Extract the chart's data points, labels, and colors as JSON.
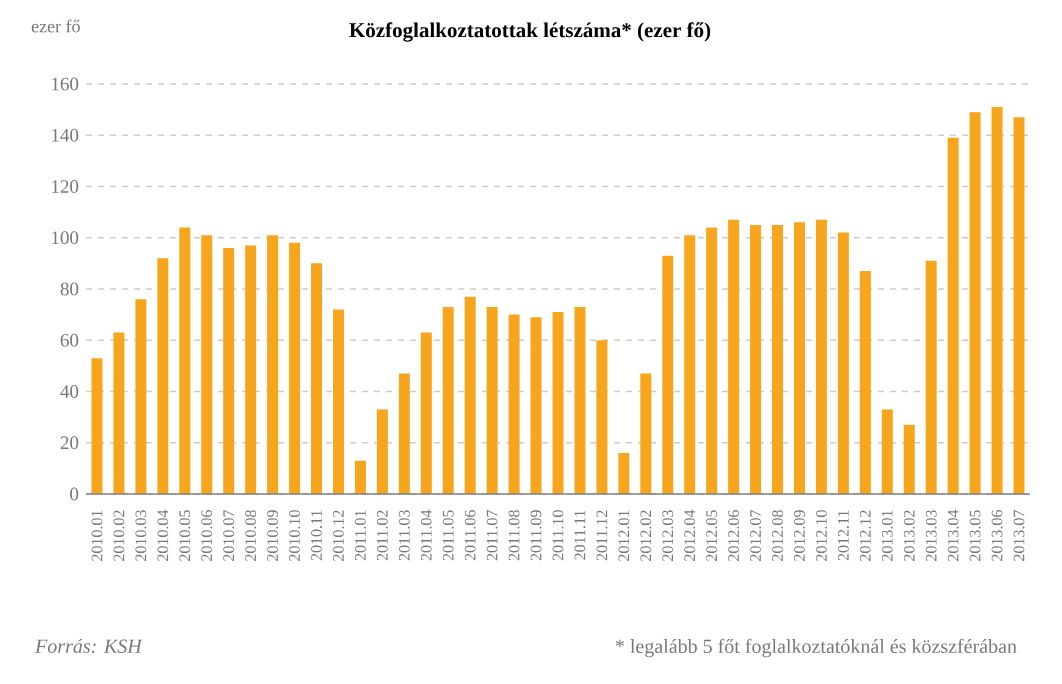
{
  "chart_data": {
    "type": "bar",
    "title": "Közfoglalkoztatottak létszáma* (ezer fő)",
    "ylabel": "ezer fő",
    "categories": [
      "2010.01",
      "2010.02",
      "2010.03",
      "2010.04",
      "2010.05",
      "2010.06",
      "2010.07",
      "2010.08",
      "2010.09",
      "2010.10",
      "2010.11",
      "2010.12",
      "2011.01",
      "2011.02",
      "2011.03",
      "2011.04",
      "2011.05",
      "2011.06",
      "2011.07",
      "2011.08",
      "2011.09",
      "2011.10",
      "2011.11",
      "2011.12",
      "2012.01",
      "2012.02",
      "2012.03",
      "2012.04",
      "2012.05",
      "2012.06",
      "2012.07",
      "2012.08",
      "2012.09",
      "2012.10",
      "2012.11",
      "2012.12",
      "2013.01",
      "2013.02",
      "2013.03",
      "2013.04",
      "2013.05",
      "2013.06",
      "2013.07"
    ],
    "values": [
      53,
      63,
      76,
      92,
      104,
      101,
      96,
      97,
      101,
      98,
      90,
      72,
      13,
      33,
      47,
      63,
      73,
      77,
      73,
      70,
      69,
      71,
      73,
      60,
      16,
      47,
      93,
      101,
      104,
      107,
      105,
      105,
      106,
      107,
      102,
      87,
      33,
      27,
      91,
      139,
      149,
      151,
      147
    ],
    "color": "#f8a51e",
    "ylim": [
      0,
      160
    ],
    "yticks": [
      0,
      20,
      40,
      60,
      80,
      100,
      120,
      140,
      160
    ],
    "grid": "y",
    "annotations": [
      "Forrás: KSH",
      "* legalább 5 főt foglalkoztatóknál és közszférában"
    ]
  }
}
